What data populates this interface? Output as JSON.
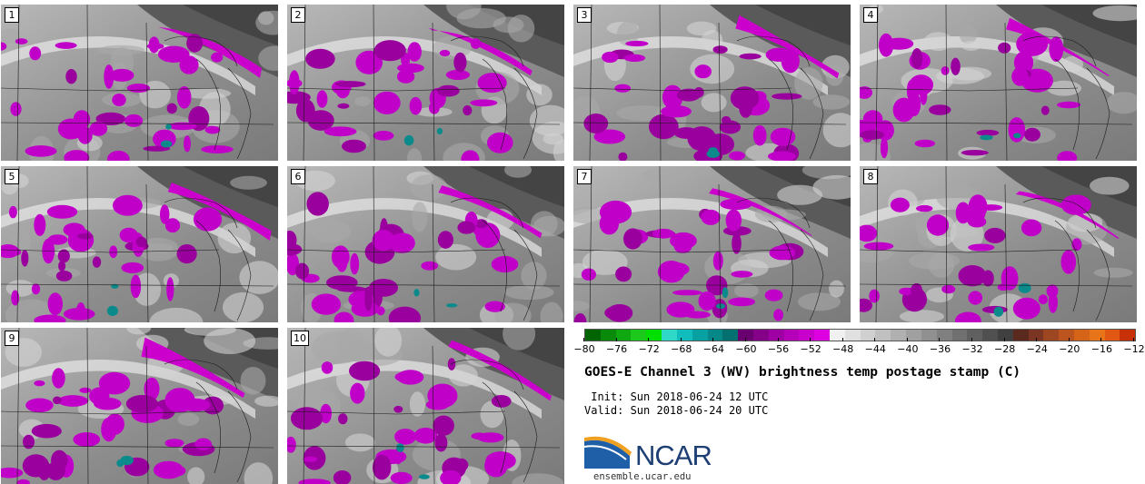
{
  "panels": [
    {
      "label": "1"
    },
    {
      "label": "2"
    },
    {
      "label": "3"
    },
    {
      "label": "4"
    },
    {
      "label": "5"
    },
    {
      "label": "6"
    },
    {
      "label": "7"
    },
    {
      "label": "8"
    },
    {
      "label": "9"
    },
    {
      "label": "10"
    }
  ],
  "colorbar": {
    "colors": [
      "#006400",
      "#0a8a0a",
      "#10a810",
      "#1cc81c",
      "#00e000",
      "#30d8c8",
      "#10bcbc",
      "#08a0a0",
      "#068888",
      "#047070",
      "#6a0070",
      "#840088",
      "#9e00a4",
      "#b400b8",
      "#c800cc",
      "#dc00e0",
      "#f0f0f0",
      "#e0e0e0",
      "#d0d0d0",
      "#c0c0c0",
      "#b0b0b0",
      "#a0a0a0",
      "#909090",
      "#808080",
      "#707070",
      "#606060",
      "#505050",
      "#404040",
      "#5a2a1e",
      "#7a3622",
      "#9c4622",
      "#bc5420",
      "#d66418",
      "#e8741a",
      "#e05814",
      "#c83008"
    ],
    "ticks": [
      -80,
      -76,
      -72,
      -68,
      -64,
      -60,
      -56,
      -52,
      -48,
      -44,
      -40,
      -36,
      -32,
      -28,
      -24,
      -20,
      -16,
      -12
    ]
  },
  "title": "GOES-E Channel 3 (WV) brightness temp postage stamp (C)",
  "init_line": " Init: Sun 2018-06-24 12 UTC",
  "valid_line": "Valid: Sun 2018-06-24 20 UTC",
  "logo": {
    "name": "NCAR",
    "url": "ensemble.ucar.edu"
  }
}
